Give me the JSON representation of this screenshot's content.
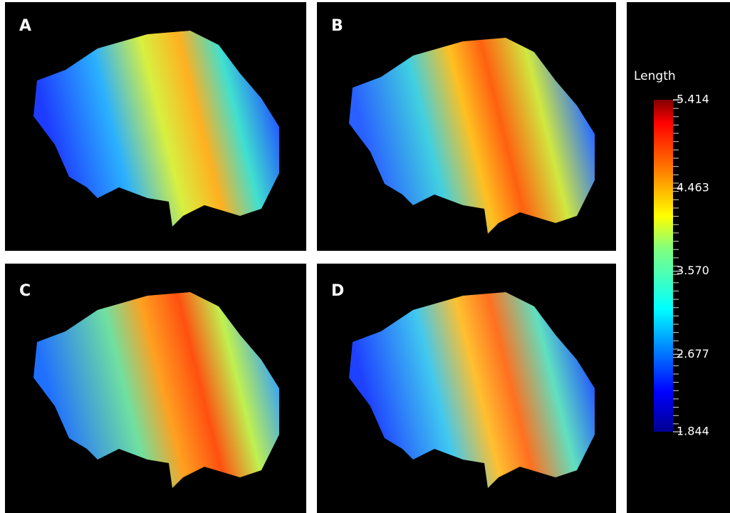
{
  "panels": [
    {
      "label": "A"
    },
    {
      "label": "B"
    },
    {
      "label": "C"
    },
    {
      "label": "D"
    }
  ],
  "colorbar": {
    "title": "Length",
    "range": [
      1.844,
      5.414
    ],
    "ticks": [
      1.844,
      2.677,
      {
        "value": 3.57,
        "label": "3.570"
      },
      4.463,
      5.414
    ]
  }
}
